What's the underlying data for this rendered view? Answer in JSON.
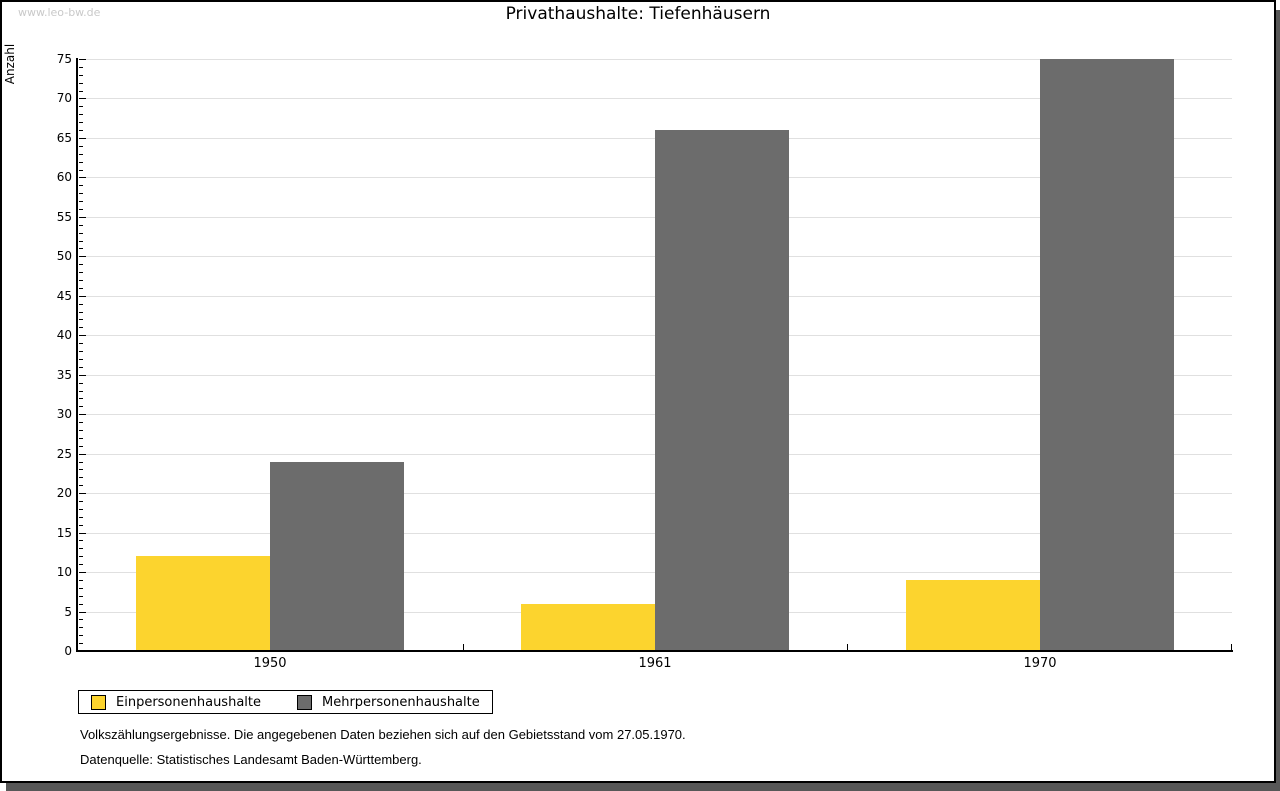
{
  "watermark": "www.leo-bw.de",
  "chart_data": {
    "type": "bar",
    "title": "Privathaushalte: Tiefenhäusern",
    "ylabel": "Anzahl",
    "xlabel": "",
    "categories": [
      "1950",
      "1961",
      "1970"
    ],
    "series": [
      {
        "name": "Einpersonenhaushalte",
        "color": "#FCD42E",
        "values": [
          12,
          6,
          9
        ]
      },
      {
        "name": "Mehrpersonenhaushalte",
        "color": "#6C6C6C",
        "values": [
          24,
          66,
          75
        ]
      }
    ],
    "ylim": [
      0,
      75
    ],
    "ytick_step": 5,
    "minor_tick_step": 1,
    "grid": true,
    "grid_color": "#e0e0e0",
    "legend_position": "bottom-left"
  },
  "footnotes": [
    "Volkszählungsergebnisse. Die angegebenen Daten beziehen sich auf den Gebietsstand vom 27.05.1970.",
    "Datenquelle: Statistisches Landesamt Baden-Württemberg."
  ]
}
